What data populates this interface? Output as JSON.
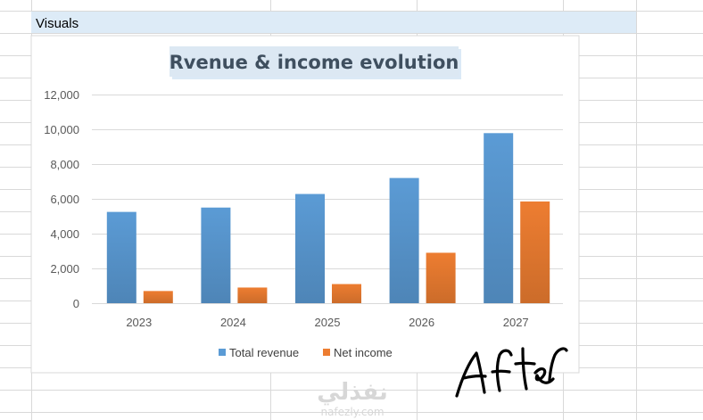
{
  "sheet": {
    "cell_label": "Visuals",
    "colors": {
      "gridline": "#d9d9d9",
      "header_fill": "#ddebf7"
    }
  },
  "watermark": {
    "arabic": "نفذلي",
    "latin": "nafezly.com"
  },
  "annotation": {
    "handwritten": "After"
  },
  "chart_data": {
    "type": "bar",
    "title": "Rvenue & income evolution",
    "categories": [
      "2023",
      "2024",
      "2025",
      "2026",
      "2027"
    ],
    "series": [
      {
        "name": "Total revenue",
        "color": "#5b9bd5",
        "values": [
          5250,
          5500,
          6280,
          7200,
          9780
        ]
      },
      {
        "name": "Net income",
        "color": "#ed7d31",
        "values": [
          700,
          900,
          1100,
          2900,
          5850
        ]
      }
    ],
    "ylim": [
      0,
      12000
    ],
    "yticks": [
      "0",
      "2,000",
      "4,000",
      "6,000",
      "8,000",
      "10,000",
      "12,000"
    ],
    "xlabel": "",
    "ylabel": "",
    "grid": true,
    "legend_position": "bottom"
  }
}
